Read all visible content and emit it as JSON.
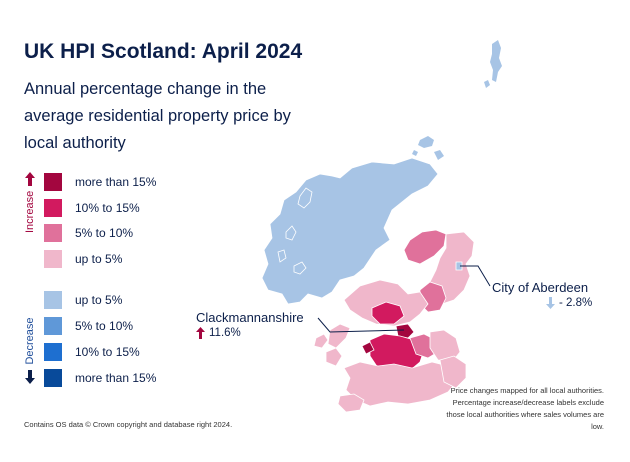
{
  "title": "UK HPI Scotland: April 2024",
  "subtitle": "Annual percentage change in the average residential property price by local authority",
  "legend": {
    "increase_label": "Increase",
    "decrease_label": "Decrease",
    "increase": [
      {
        "label": "more than 15%",
        "color": "#a3063f"
      },
      {
        "label": "10% to 15%",
        "color": "#d21a5f"
      },
      {
        "label": "5% to 10%",
        "color": "#e0719b"
      },
      {
        "label": "up to 5%",
        "color": "#f0b7cb"
      }
    ],
    "decrease": [
      {
        "label": "up to 5%",
        "color": "#a7c4e5"
      },
      {
        "label": "5% to 10%",
        "color": "#5f98d8"
      },
      {
        "label": "10% to 15%",
        "color": "#1e6fd0"
      },
      {
        "label": "more than 15%",
        "color": "#084a9a"
      }
    ]
  },
  "callouts": {
    "aberdeen": {
      "name": "City of Aberdeen",
      "value": "- 2.8%",
      "direction": "down"
    },
    "clackmannanshire": {
      "name": "Clackmannanshire",
      "value": "11.6%",
      "direction": "up"
    }
  },
  "credit": "Contains OS data © Crown copyright and database right 2024.",
  "note": "Price changes mapped for all local authorities. Percentage increase/decrease labels exclude those local authorities where sales volumes are low."
}
